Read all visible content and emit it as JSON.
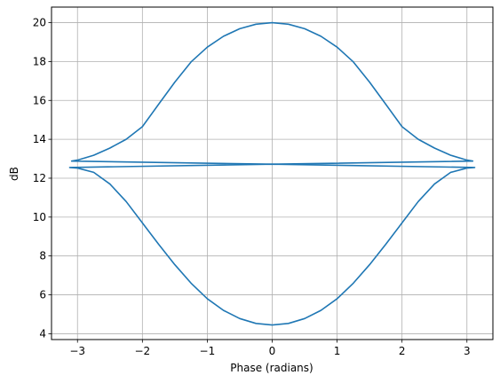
{
  "chart_data": {
    "type": "line",
    "title": "",
    "xlabel": "Phase (radians)",
    "ylabel": "dB",
    "xlim": [
      -3.4,
      3.4
    ],
    "ylim": [
      3.7,
      20.8
    ],
    "xticks": [
      -3,
      -2,
      -1,
      0,
      1,
      2,
      3
    ],
    "yticks": [
      4,
      6,
      8,
      10,
      12,
      14,
      16,
      18,
      20
    ],
    "grid": true,
    "legend": "none",
    "color": "#1f77b4",
    "series": [
      {
        "x": [
          0,
          0.25,
          0.5,
          0.75,
          1.0,
          1.25,
          1.5,
          1.75,
          2.0,
          2.25,
          2.5,
          2.75,
          3.0,
          3.09,
          0,
          -3.09,
          -3.0,
          -2.75,
          -2.5,
          -2.25,
          -2.0,
          -1.75,
          -1.5,
          -1.25,
          -1.0,
          -0.75,
          -0.5,
          -0.25,
          0
        ],
        "y": [
          20.0,
          19.92,
          19.69,
          19.3,
          18.74,
          17.98,
          16.94,
          15.8,
          14.65,
          14.0,
          13.55,
          13.18,
          12.93,
          12.88,
          12.72,
          12.88,
          12.93,
          13.18,
          13.55,
          14.0,
          14.65,
          15.8,
          16.94,
          17.98,
          18.74,
          19.3,
          19.69,
          19.92,
          20.0
        ]
      },
      {
        "x": [
          0,
          -0.25,
          -0.5,
          -0.75,
          -1.0,
          -1.25,
          -1.5,
          -1.75,
          -2.0,
          -2.25,
          -2.5,
          -2.75,
          -3.0,
          -3.12,
          0,
          3.12,
          3.0,
          2.75,
          2.5,
          2.25,
          2.0,
          1.75,
          1.5,
          1.25,
          1.0,
          0.75,
          0.5,
          0.25,
          0
        ],
        "y": [
          4.45,
          4.53,
          4.78,
          5.2,
          5.8,
          6.6,
          7.55,
          8.6,
          9.7,
          10.8,
          11.7,
          12.3,
          12.52,
          12.55,
          12.72,
          12.55,
          12.52,
          12.3,
          11.7,
          10.8,
          9.7,
          8.6,
          7.55,
          6.6,
          5.8,
          5.2,
          4.78,
          4.53,
          4.45
        ]
      }
    ]
  }
}
